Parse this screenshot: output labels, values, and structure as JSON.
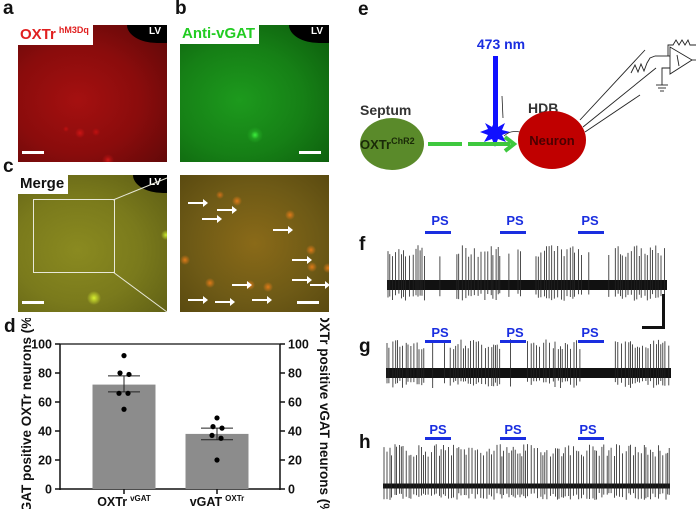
{
  "panels": {
    "a": {
      "letter": "a",
      "label": "OXTr",
      "superscript": "hM3Dq",
      "region": "LV",
      "color": "#e02020"
    },
    "b": {
      "letter": "b",
      "label": "Anti-vGAT",
      "region": "LV",
      "color": "#22cc22"
    },
    "c": {
      "letter": "c",
      "label": "Merge",
      "region": "LV"
    },
    "d": {
      "letter": "d"
    },
    "e": {
      "letter": "e",
      "laser": "473 nm",
      "source_region": "Septum",
      "source_label": "OXTr",
      "source_superscript": "ChR2",
      "target_region": "HDB",
      "target_label": "Neuron"
    },
    "f": {
      "letter": "f",
      "stim_labels": [
        "PS",
        "PS",
        "PS"
      ]
    },
    "g": {
      "letter": "g",
      "stim_labels": [
        "PS",
        "PS",
        "PS"
      ]
    },
    "h": {
      "letter": "h",
      "stim_labels": [
        "PS",
        "PS",
        "PS"
      ]
    }
  },
  "chart_data": {
    "type": "bar",
    "categories": [
      "OXTr vGAT",
      "vGAT OXTr"
    ],
    "category_main": [
      "OXTr",
      "vGAT"
    ],
    "category_super": [
      "vGAT",
      "OXTr"
    ],
    "values": [
      72,
      38
    ],
    "error_sem": [
      [
        67,
        78
      ],
      [
        34,
        42
      ]
    ],
    "points": [
      [
        92,
        80,
        79,
        66,
        66,
        55
      ],
      [
        49,
        43,
        42,
        37,
        35,
        20
      ]
    ],
    "ylabel_left": "vGAT positive OXTr neurons (%)",
    "ylabel_right": "OXTr positive vGAT neurons (%)",
    "ylim": [
      0,
      100
    ],
    "yticks": [
      "0",
      "20",
      "40",
      "60",
      "80",
      "100"
    ],
    "bar_color": "#8c8c8c",
    "grid": false
  }
}
